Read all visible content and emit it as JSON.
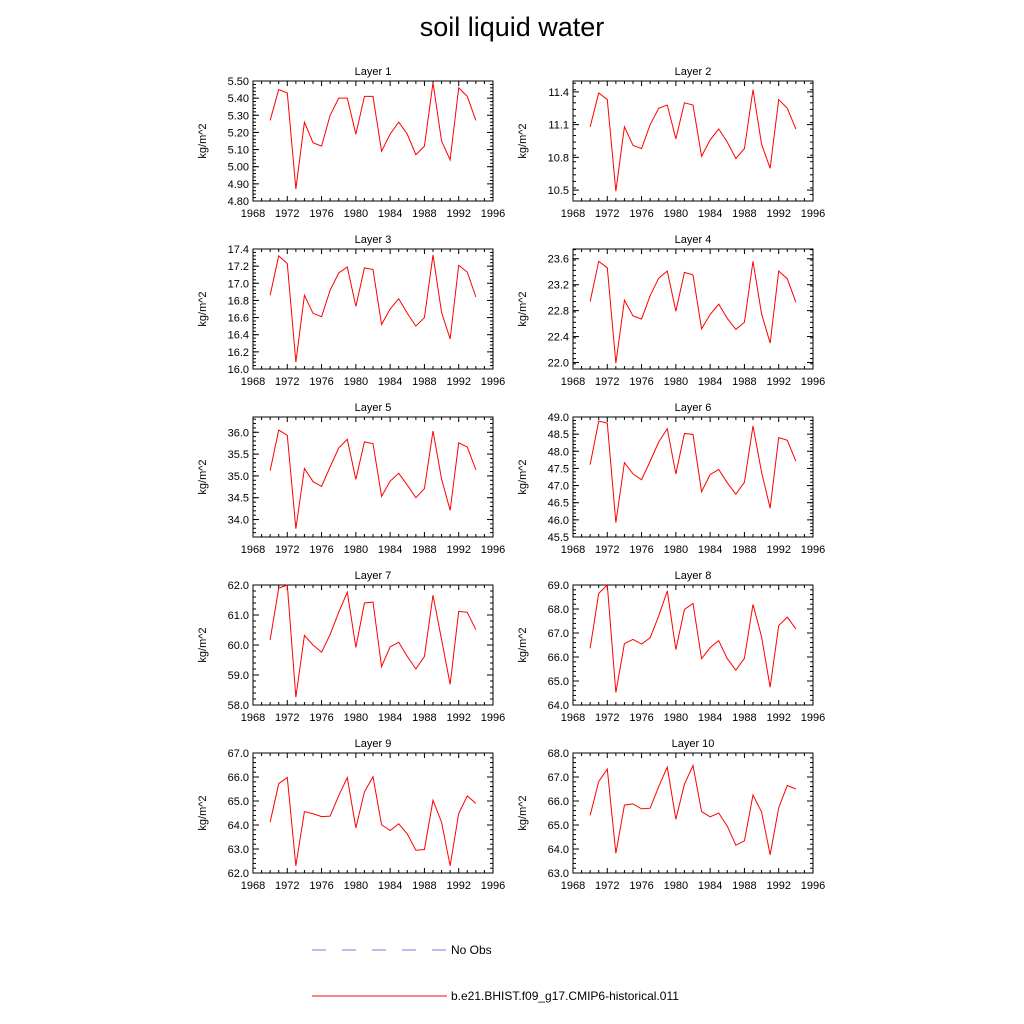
{
  "title": "soil liquid water",
  "chart_data": {
    "type": "line",
    "title": "soil liquid water",
    "x": [
      1970,
      1971,
      1972,
      1973,
      1974,
      1975,
      1976,
      1977,
      1978,
      1979,
      1980,
      1981,
      1982,
      1983,
      1984,
      1985,
      1986,
      1987,
      1988,
      1989,
      1990,
      1991,
      1992,
      1993,
      1994
    ],
    "x_ticks": [
      "1968",
      "1972",
      "1976",
      "1980",
      "1984",
      "1988",
      "1992",
      "1996"
    ],
    "xlim": [
      1968,
      1996
    ],
    "ylabel": "kg/m^2",
    "series_name": "b.e21.BHIST.f09_g17.CMIP6-historical.011",
    "series_color": "#ff0000",
    "panels": [
      {
        "title": "Layer 1",
        "ylim": [
          4.8,
          5.5
        ],
        "yticks": [
          "4.80",
          "4.90",
          "5.00",
          "5.10",
          "5.20",
          "5.30",
          "5.40",
          "5.50"
        ],
        "values": [
          5.27,
          5.45,
          5.43,
          4.87,
          5.26,
          5.14,
          5.12,
          5.3,
          5.4,
          5.4,
          5.19,
          5.41,
          5.41,
          5.09,
          5.19,
          5.26,
          5.19,
          5.07,
          5.12,
          5.49,
          5.15,
          5.04,
          5.46,
          5.41,
          5.27
        ]
      },
      {
        "title": "Layer 2",
        "ylim": [
          10.4,
          11.5
        ],
        "yticks": [
          "10.5",
          "10.8",
          "11.1",
          "11.4"
        ],
        "values": [
          11.08,
          11.39,
          11.33,
          10.49,
          11.08,
          10.91,
          10.88,
          11.1,
          11.25,
          11.28,
          10.97,
          11.3,
          11.28,
          10.81,
          10.96,
          11.06,
          10.94,
          10.79,
          10.88,
          11.42,
          10.92,
          10.7,
          11.33,
          11.25,
          11.06
        ]
      },
      {
        "title": "Layer 3",
        "ylim": [
          16.0,
          17.4
        ],
        "yticks": [
          "16.0",
          "16.2",
          "16.4",
          "16.6",
          "16.8",
          "17.0",
          "17.2",
          "17.4"
        ],
        "values": [
          16.86,
          17.32,
          17.23,
          16.08,
          16.86,
          16.65,
          16.61,
          16.92,
          17.12,
          17.19,
          16.73,
          17.18,
          17.16,
          16.52,
          16.7,
          16.82,
          16.65,
          16.5,
          16.6,
          17.33,
          16.66,
          16.35,
          17.21,
          17.13,
          16.84
        ]
      },
      {
        "title": "Layer 4",
        "ylim": [
          21.9,
          23.75
        ],
        "yticks": [
          "22.0",
          "22.4",
          "22.8",
          "23.2",
          "23.6"
        ],
        "values": [
          22.94,
          23.56,
          23.46,
          21.99,
          22.96,
          22.72,
          22.67,
          23.03,
          23.3,
          23.41,
          22.79,
          23.39,
          23.35,
          22.52,
          22.74,
          22.9,
          22.68,
          22.51,
          22.62,
          23.56,
          22.75,
          22.3,
          23.41,
          23.29,
          22.93
        ]
      },
      {
        "title": "Layer 5",
        "ylim": [
          33.6,
          36.35
        ],
        "yticks": [
          "34.0",
          "34.5",
          "35.0",
          "35.5",
          "36.0"
        ],
        "values": [
          35.12,
          36.05,
          35.93,
          33.79,
          35.17,
          34.87,
          34.76,
          35.21,
          35.64,
          35.84,
          34.92,
          35.78,
          35.74,
          34.53,
          34.88,
          35.06,
          34.79,
          34.5,
          34.71,
          36.03,
          34.93,
          34.21,
          35.76,
          35.66,
          35.14
        ]
      },
      {
        "title": "Layer 6",
        "ylim": [
          45.5,
          49.0
        ],
        "yticks": [
          "45.5",
          "46.0",
          "46.5",
          "47.0",
          "47.5",
          "48.0",
          "48.5",
          "49.0"
        ],
        "values": [
          47.61,
          48.88,
          48.82,
          45.92,
          47.67,
          47.34,
          47.17,
          47.71,
          48.27,
          48.66,
          47.34,
          48.52,
          48.49,
          46.82,
          47.32,
          47.47,
          47.08,
          46.75,
          47.1,
          48.74,
          47.39,
          46.34,
          48.4,
          48.32,
          47.71
        ]
      },
      {
        "title": "Layer 7",
        "ylim": [
          58.0,
          62.0
        ],
        "yticks": [
          "58.0",
          "59.0",
          "60.0",
          "61.0",
          "62.0"
        ],
        "values": [
          60.17,
          61.89,
          62.0,
          58.26,
          60.32,
          60.0,
          59.76,
          60.35,
          61.09,
          61.76,
          59.92,
          61.4,
          61.43,
          59.28,
          59.94,
          60.09,
          59.62,
          59.2,
          59.62,
          61.66,
          60.18,
          58.69,
          61.12,
          61.09,
          60.51
        ]
      },
      {
        "title": "Layer 8",
        "ylim": [
          64.0,
          69.0
        ],
        "yticks": [
          "64.0",
          "65.0",
          "66.0",
          "67.0",
          "68.0",
          "69.0"
        ],
        "values": [
          66.36,
          68.65,
          69.0,
          64.52,
          66.56,
          66.73,
          66.54,
          66.8,
          67.71,
          68.75,
          66.31,
          67.98,
          68.23,
          65.93,
          66.39,
          66.68,
          65.93,
          65.45,
          65.95,
          68.19,
          66.84,
          64.74,
          67.31,
          67.66,
          67.17
        ]
      },
      {
        "title": "Layer 9",
        "ylim": [
          62.0,
          67.0
        ],
        "yticks": [
          "62.0",
          "63.0",
          "64.0",
          "65.0",
          "66.0",
          "67.0"
        ],
        "values": [
          64.12,
          65.72,
          65.98,
          62.3,
          64.56,
          64.47,
          64.35,
          64.37,
          65.22,
          65.98,
          63.88,
          65.38,
          66.01,
          64.01,
          63.77,
          64.05,
          63.63,
          62.95,
          62.98,
          65.03,
          64.11,
          62.3,
          64.48,
          65.21,
          64.9
        ]
      },
      {
        "title": "Layer 10",
        "ylim": [
          63.0,
          68.0
        ],
        "yticks": [
          "63.0",
          "64.0",
          "65.0",
          "66.0",
          "67.0",
          "68.0"
        ],
        "values": [
          65.4,
          66.81,
          67.33,
          63.82,
          65.83,
          65.88,
          65.67,
          65.7,
          66.6,
          67.41,
          65.24,
          66.7,
          67.48,
          65.56,
          65.34,
          65.5,
          64.95,
          64.16,
          64.34,
          66.25,
          65.54,
          63.76,
          65.72,
          66.65,
          66.5
        ]
      }
    ],
    "legend": [
      {
        "label": "No Obs",
        "color": "#7a7ad8",
        "style": "dashed"
      },
      {
        "label": "b.e21.BHIST.f09_g17.CMIP6-historical.011",
        "color": "#ff0000",
        "style": "solid"
      }
    ]
  }
}
